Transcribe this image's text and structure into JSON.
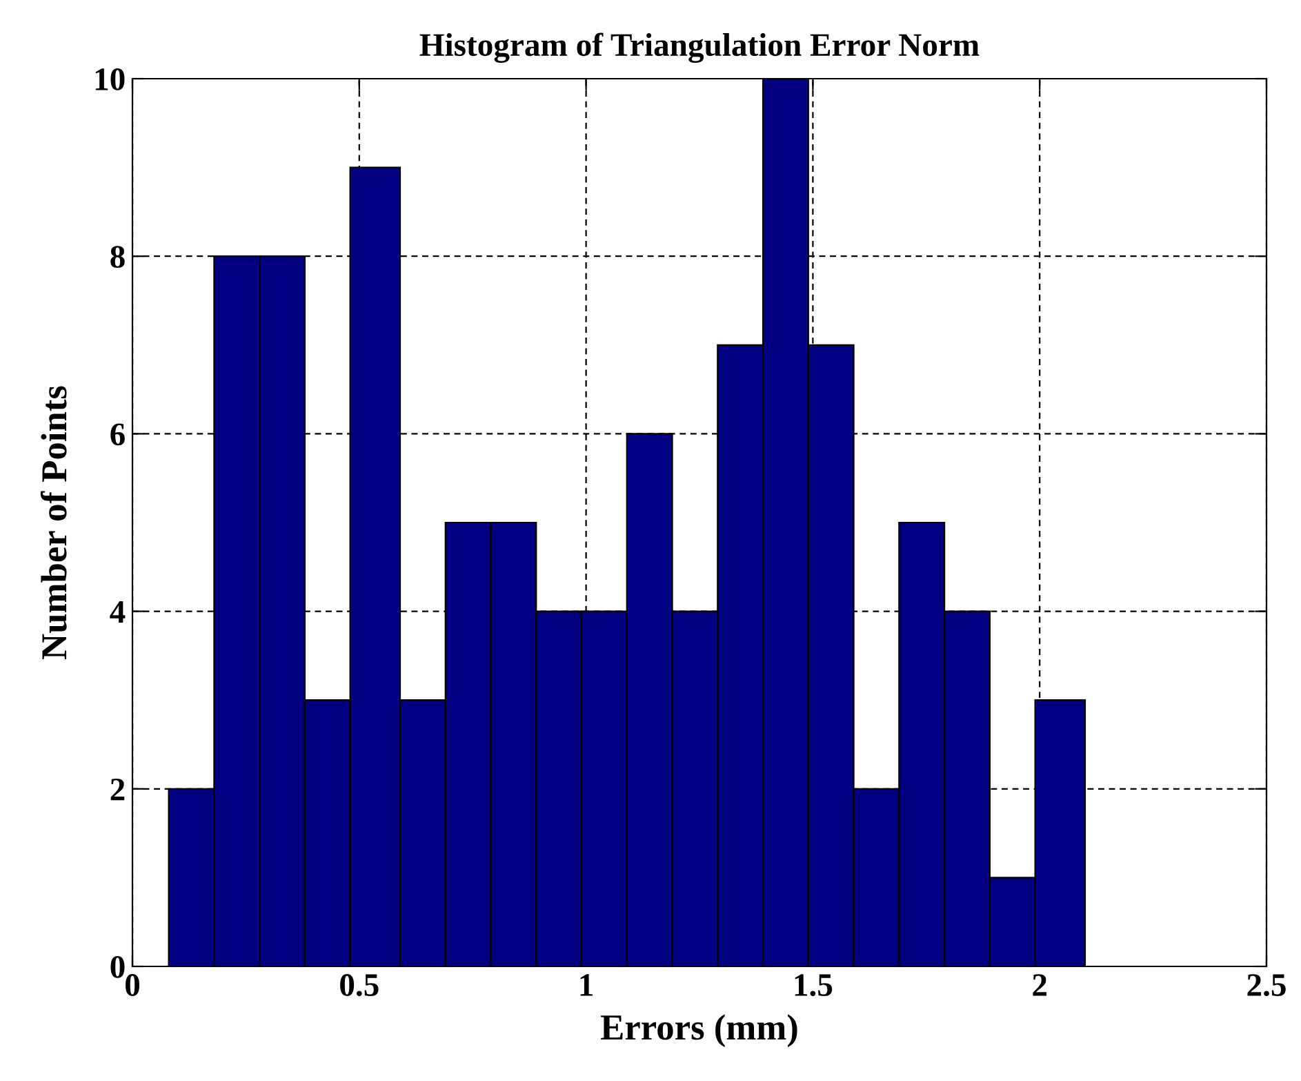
{
  "chart_data": {
    "type": "histogram",
    "title": "Histogram of Triangulation Error Norm",
    "xlabel": "Errors (mm)",
    "ylabel": "Number of Points",
    "bins": [
      0.08,
      0.18,
      0.28,
      0.38,
      0.48,
      0.59,
      0.69,
      0.79,
      0.89,
      0.99,
      1.09,
      1.19,
      1.29,
      1.39,
      1.49,
      1.59,
      1.69,
      1.79,
      1.89,
      1.99,
      2.1
    ],
    "values": [
      2,
      8,
      8,
      3,
      9,
      3,
      5,
      5,
      4,
      4,
      6,
      4,
      7,
      10,
      7,
      2,
      5,
      4,
      1,
      3
    ],
    "color": "#000080",
    "xlim": [
      0,
      2.5
    ],
    "xticks": [
      0,
      0.5,
      1,
      1.5,
      2,
      2.5
    ],
    "ylim": [
      0,
      10
    ],
    "yticks": [
      0,
      2,
      4,
      6,
      8,
      10
    ],
    "grid": true,
    "line_style": "dashed"
  }
}
